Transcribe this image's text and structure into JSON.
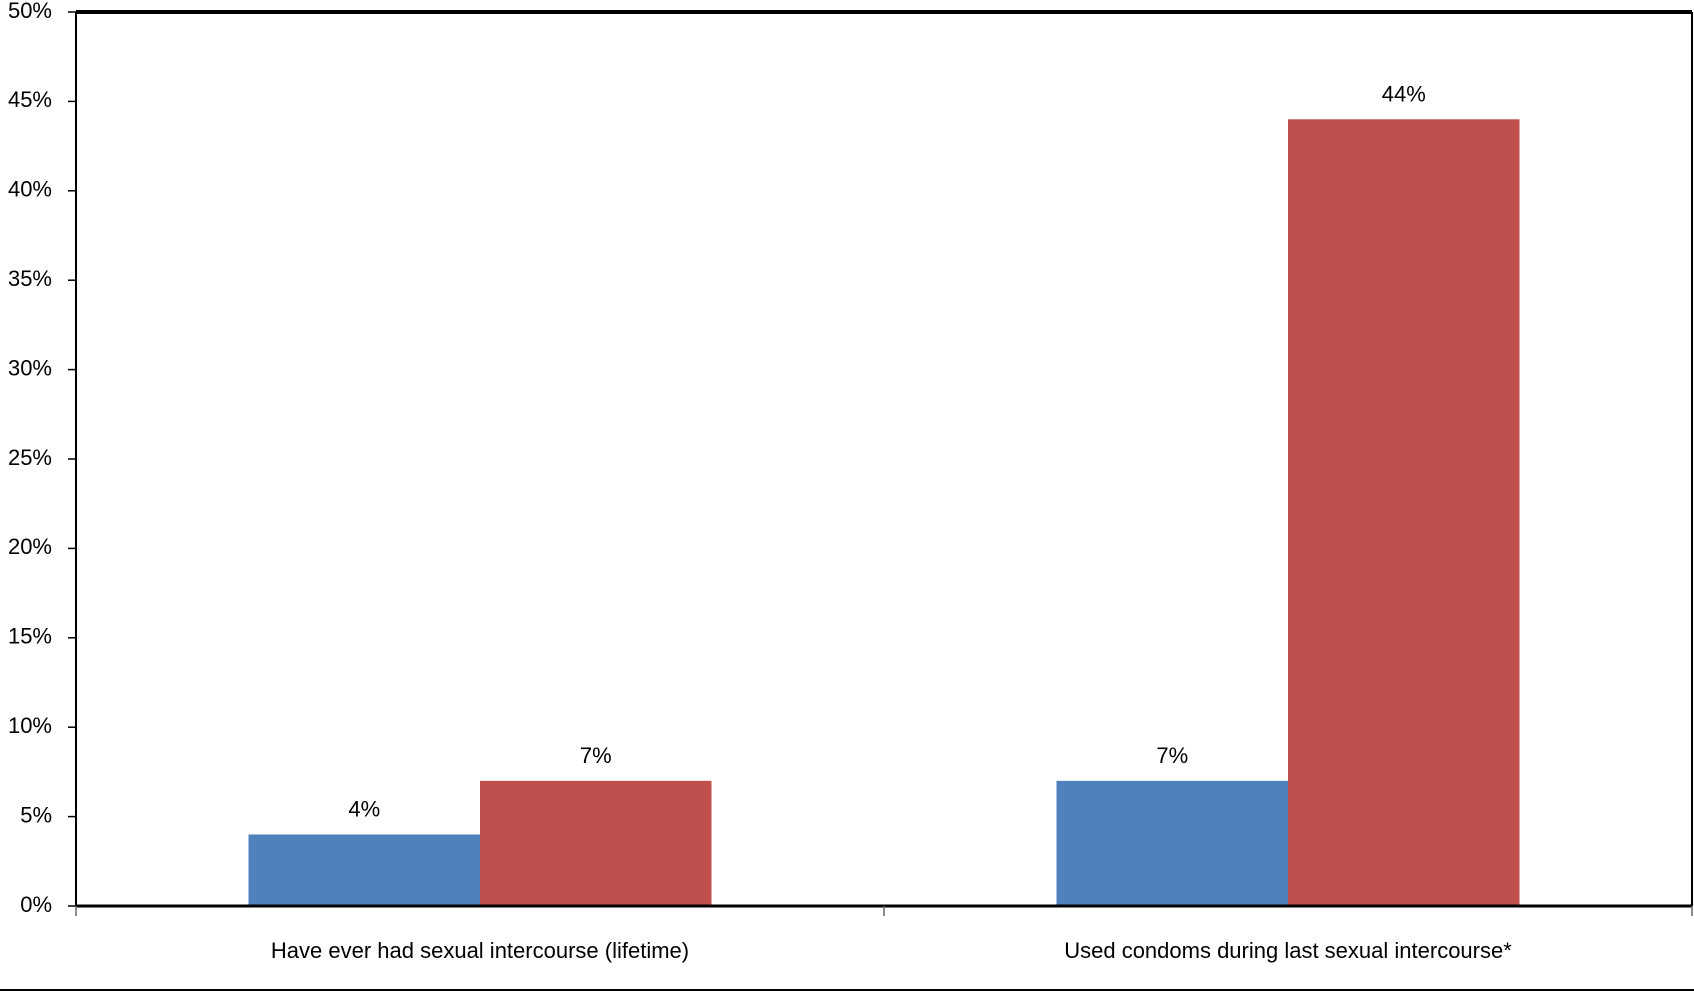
{
  "chart_data": {
    "type": "bar",
    "categories": [
      "Have ever had sexual intercourse (lifetime)",
      "Used condoms during last sexual intercourse*"
    ],
    "series": [
      {
        "values": [
          4,
          7
        ],
        "labels": [
          "4%",
          "7%"
        ],
        "color": "#4F81BD"
      },
      {
        "values": [
          7,
          44
        ],
        "labels": [
          "7%",
          "44%"
        ],
        "color": "#C0504D"
      }
    ],
    "ylim": [
      0,
      50
    ],
    "yticks": [
      0,
      5,
      10,
      15,
      20,
      25,
      30,
      35,
      40,
      45,
      50
    ],
    "ytick_labels": [
      "0%",
      "5%",
      "10%",
      "15%",
      "20%",
      "25%",
      "30%",
      "35%",
      "40%",
      "45%",
      "50%"
    ],
    "grid": false,
    "legend": "none"
  }
}
